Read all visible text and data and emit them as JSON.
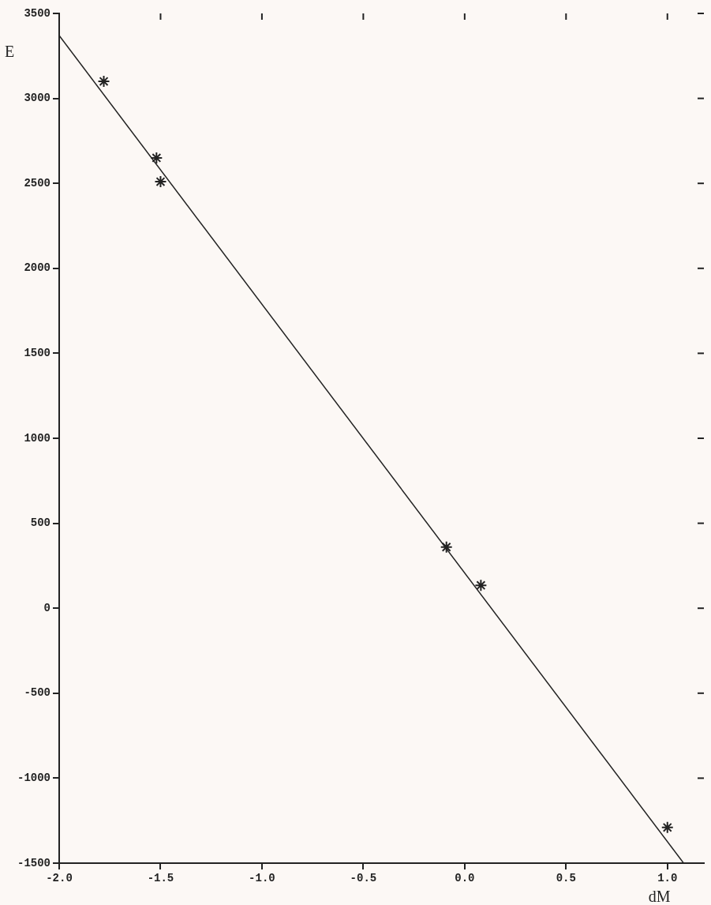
{
  "chart_data": {
    "type": "scatter",
    "xlabel": "dM",
    "ylabel": "E",
    "marker": "cross",
    "xlim": [
      -2.0,
      1.18
    ],
    "ylim": [
      -1500,
      3500
    ],
    "xticks": [
      {
        "value": -2.0,
        "label": "-2.0"
      },
      {
        "value": -1.5,
        "label": "-1.5"
      },
      {
        "value": -1.0,
        "label": "-1.0"
      },
      {
        "value": -0.5,
        "label": "-0.5"
      },
      {
        "value": 0.0,
        "label": "0.0"
      },
      {
        "value": 0.5,
        "label": "0.5"
      },
      {
        "value": 1.0,
        "label": "1.0"
      }
    ],
    "yticks": [
      -1500,
      -1000,
      -500,
      0,
      500,
      1000,
      1500,
      2000,
      2500,
      3000,
      3500
    ],
    "series": [
      {
        "type": "scatter",
        "color": "#222222",
        "x": [
          -1.78,
          -1.52,
          -1.5,
          -0.09,
          0.08,
          1.0
        ],
        "values": [
          3100,
          2650,
          2510,
          360,
          135,
          -1290
        ]
      },
      {
        "type": "line",
        "color": "#222222",
        "marker": "none",
        "x": [
          -2.0,
          1.08
        ],
        "values": [
          3370,
          -1500
        ]
      }
    ]
  }
}
